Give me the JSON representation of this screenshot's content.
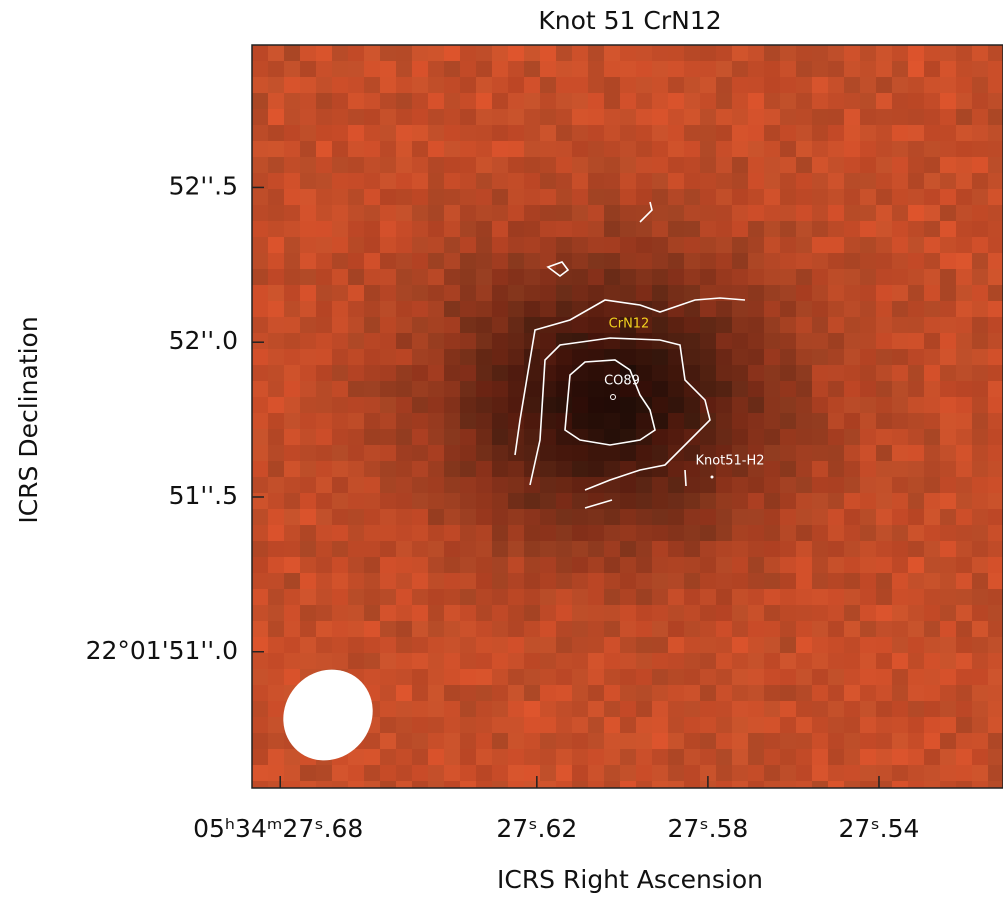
{
  "chart_data": {
    "type": "image",
    "title": "Knot 51 CrN12",
    "xlabel": "ICRS Right Ascension",
    "ylabel": "ICRS Declination",
    "xlim": [
      27.6866,
      27.511
    ],
    "ylim": [
      50.56,
      52.96
    ],
    "xticks": [
      {
        "value": 27.68,
        "label": "05ʰ34ᵐ27ˢ.68"
      },
      {
        "value": 27.62,
        "label": "27ˢ.62"
      },
      {
        "value": 27.58,
        "label": "27ˢ.58"
      },
      {
        "value": 27.54,
        "label": "27ˢ.54"
      }
    ],
    "yticks": [
      {
        "value": 52.5,
        "label": "52''.5"
      },
      {
        "value": 52.0,
        "label": "52''.0"
      },
      {
        "value": 51.5,
        "label": "51''.5"
      },
      {
        "value": 51.0,
        "label": "22°01'51''.0"
      }
    ],
    "annotations": [
      "CrN12",
      "CO89",
      "Knot51-H2"
    ]
  }
}
